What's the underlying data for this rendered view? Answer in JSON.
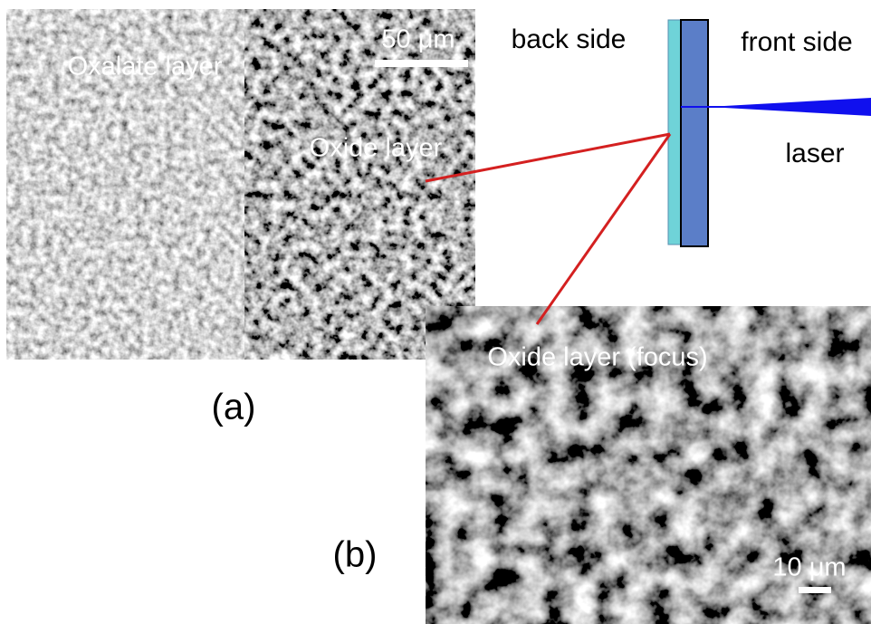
{
  "panel_a": {
    "label": "(a)",
    "regions": [
      "Oxalate layer",
      "Oxide layer"
    ],
    "scale_bar": "50 μm"
  },
  "panel_b": {
    "label": "(b)",
    "title": "Oxide layer (focus)",
    "scale_bar": "10 μm"
  },
  "diagram": {
    "back": "back side",
    "front": "front side",
    "beam": "laser"
  }
}
